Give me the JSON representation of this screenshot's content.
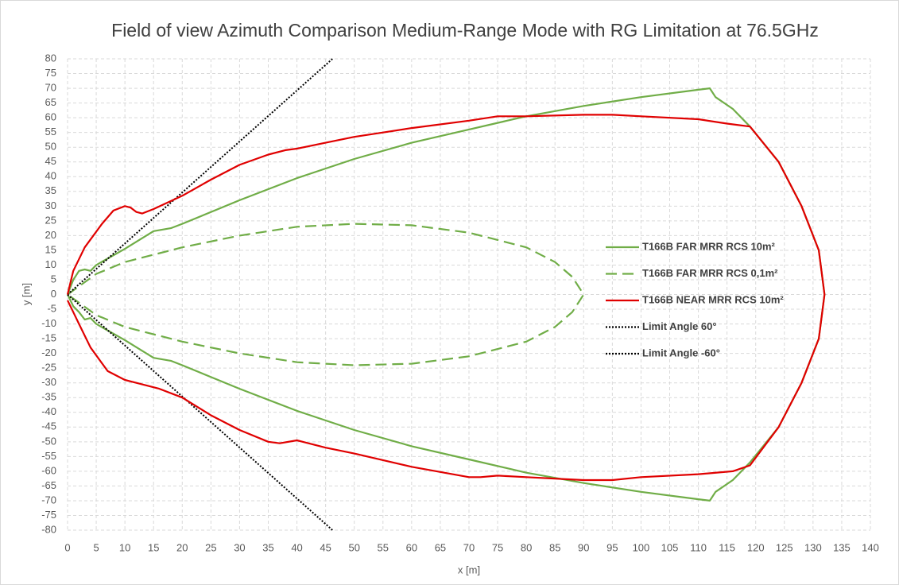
{
  "chart_data": {
    "type": "line",
    "title": "Field of view Azimuth Comparison Medium-Range Mode with RG Limitation at 76.5GHz",
    "x_label": "x [m]",
    "y_label": "y [m]",
    "xlim": [
      0,
      140
    ],
    "ylim": [
      -80,
      80
    ],
    "xticks": [
      0,
      5,
      10,
      15,
      20,
      25,
      30,
      35,
      40,
      45,
      50,
      55,
      60,
      65,
      70,
      75,
      80,
      85,
      90,
      95,
      100,
      105,
      110,
      115,
      120,
      125,
      130,
      135,
      140
    ],
    "yticks": [
      -80,
      -75,
      -70,
      -65,
      -60,
      -55,
      -50,
      -45,
      -40,
      -35,
      -30,
      -25,
      -20,
      -15,
      -10,
      -5,
      0,
      5,
      10,
      15,
      20,
      25,
      30,
      35,
      40,
      45,
      50,
      55,
      60,
      65,
      70,
      75,
      80
    ],
    "grid": true,
    "legend": "right",
    "series": [
      {
        "name": "T166B FAR MRR RCS 10m²",
        "color": "#70ad47",
        "dash": "solid",
        "x": [
          0,
          1,
          2,
          3,
          4,
          5,
          10,
          15,
          18,
          20,
          30,
          40,
          50,
          60,
          70,
          80,
          90,
          100,
          110,
          112,
          113,
          116,
          119,
          124,
          128,
          131,
          132,
          131,
          128,
          124,
          119,
          116,
          113,
          112,
          110,
          100,
          90,
          80,
          70,
          60,
          50,
          40,
          30,
          20,
          18,
          15,
          10,
          5,
          4,
          3,
          2,
          1,
          0
        ],
        "values": [
          0,
          5,
          8,
          8.5,
          8,
          10,
          15.5,
          21.5,
          22.5,
          24,
          32,
          39.5,
          46,
          51.5,
          56,
          60.5,
          64,
          67,
          69.5,
          70,
          67,
          63,
          57,
          45,
          30,
          15,
          0,
          -15,
          -30,
          -45,
          -57,
          -63,
          -67,
          -70,
          -69.5,
          -67,
          -64,
          -60.5,
          -56,
          -51.5,
          -46,
          -39.5,
          -32,
          -24,
          -22.5,
          -21.5,
          -15.5,
          -10,
          -8,
          -8.5,
          -6,
          -4,
          0
        ]
      },
      {
        "name": "T166B FAR MRR RCS 0,1m²",
        "color": "#70ad47",
        "dash": "dashed",
        "x": [
          0,
          5,
          10,
          20,
          30,
          40,
          50,
          60,
          70,
          80,
          85,
          88,
          90,
          88,
          85,
          80,
          70,
          60,
          50,
          40,
          30,
          20,
          10,
          5,
          0
        ],
        "values": [
          0,
          7,
          11,
          16,
          20,
          23,
          24,
          23.5,
          21,
          16,
          11,
          6,
          0,
          -6,
          -11,
          -16,
          -21,
          -23.5,
          -24,
          -23,
          -20,
          -16,
          -11,
          -7,
          0
        ]
      },
      {
        "name": "T166B NEAR MRR RCS 10m²",
        "color": "#e00000",
        "dash": "solid",
        "x": [
          0,
          1,
          3,
          6,
          8,
          10,
          11,
          12,
          13,
          15,
          20,
          25,
          30,
          35,
          38,
          40,
          45,
          50,
          55,
          60,
          70,
          75,
          80,
          90,
          95,
          100,
          110,
          115,
          119,
          124,
          128,
          131,
          132,
          131,
          128,
          124,
          119,
          116,
          110,
          100,
          95,
          90,
          80,
          75,
          72,
          70,
          60,
          50,
          45,
          40,
          37,
          35,
          30,
          25,
          20,
          16,
          12,
          10,
          7,
          4,
          2,
          1,
          0
        ],
        "values": [
          0,
          8,
          16,
          24,
          28.5,
          30,
          29.5,
          28,
          27.5,
          29,
          33.5,
          39,
          44,
          47.5,
          49,
          49.5,
          51.5,
          53.5,
          55,
          56.5,
          59,
          60.5,
          60.5,
          61,
          61,
          60.5,
          59.5,
          58,
          57,
          45,
          30,
          15,
          0,
          -15,
          -30,
          -45,
          -58,
          -60,
          -61,
          -62,
          -63,
          -63,
          -62,
          -61.5,
          -62,
          -62,
          -58.5,
          -54,
          -52,
          -49.5,
          -50.5,
          -50,
          -46,
          -41,
          -35,
          -32,
          -30,
          -29,
          -26,
          -18,
          -10,
          -6,
          -2
        ]
      },
      {
        "name": "Limit Angle 60°",
        "color": "#000000",
        "dash": "dotted",
        "x": [
          0,
          46.2
        ],
        "values": [
          0,
          80
        ]
      },
      {
        "name": "Limit Angle -60°",
        "color": "#000000",
        "dash": "dotted",
        "x": [
          0,
          46.2
        ],
        "values": [
          0,
          -80
        ]
      }
    ]
  }
}
